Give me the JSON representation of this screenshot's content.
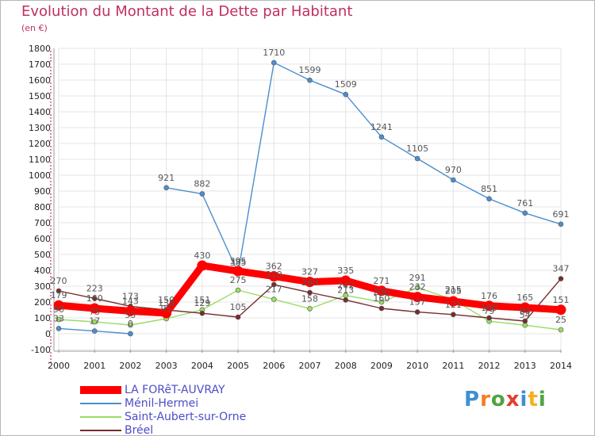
{
  "chart_data": {
    "type": "line",
    "title": "Evolution du Montant de la Dette par Habitant",
    "subtitle": "(en €)",
    "xlabel": "",
    "ylabel": "",
    "x": [
      "2000",
      "2001",
      "2002",
      "2003",
      "2004",
      "2005",
      "2006",
      "2007",
      "2008",
      "2009",
      "2010",
      "2011",
      "2012",
      "2013",
      "2014"
    ],
    "ylim": [
      -100,
      1800
    ],
    "yticks": [
      -100,
      0,
      100,
      200,
      300,
      400,
      500,
      600,
      700,
      800,
      900,
      1000,
      1100,
      1200,
      1300,
      1400,
      1500,
      1600,
      1700,
      1800
    ],
    "grid": true,
    "legend_position": "bottom-left",
    "series": [
      {
        "name": "LA FORêT-AUVRAY",
        "color": "#ff0000",
        "values": [
          179,
          160,
          143,
          130,
          430,
          395,
          362,
          327,
          335,
          271,
          232,
          205,
          176,
          165,
          151
        ]
      },
      {
        "name": "Ménil-Hermei",
        "color": "#4a8fcf",
        "values": [
          33,
          17,
          0,
          921,
          882,
          385,
          1710,
          1599,
          1509,
          1241,
          1105,
          970,
          851,
          761,
          691
        ]
      },
      {
        "name": "Saint-Aubert-sur-Orne",
        "color": "#99dd66",
        "values": [
          90,
          75,
          55,
          95,
          151,
          275,
          217,
          158,
          242,
          200,
          291,
          215,
          79,
          54,
          25
        ]
      },
      {
        "name": "Bréel",
        "color": "#772d2d",
        "values": [
          270,
          223,
          173,
          150,
          129,
          105,
          310,
          260,
          213,
          160,
          137,
          121,
          100,
          80,
          347
        ]
      }
    ],
    "labels": [
      [
        "179",
        "160",
        "143",
        "130",
        "430",
        "395",
        "362",
        "327",
        "335",
        "271",
        "232",
        "205",
        "176",
        "165",
        "151"
      ],
      [
        "33",
        "17",
        "0",
        "921",
        "882",
        "385",
        "1710",
        "1599",
        "1509",
        "1241",
        "1105",
        "970",
        "851",
        "761",
        "691"
      ],
      [
        "90",
        "75",
        "55",
        "95",
        "151",
        "275",
        "217",
        "158",
        "242",
        "200",
        "291",
        "215",
        "79",
        "54",
        "25"
      ],
      [
        "270",
        "223",
        "173",
        "150",
        "129",
        "105",
        "310",
        "260",
        "213",
        "160",
        "137",
        "121",
        "100",
        "80",
        "347"
      ]
    ]
  },
  "logo": {
    "text": "Proxiti",
    "colors": [
      "#3f8fd0",
      "#f47d20",
      "#4ea53f",
      "#e63b2e",
      "#3f8fd0",
      "#f4b020",
      "#4ea53f"
    ]
  }
}
